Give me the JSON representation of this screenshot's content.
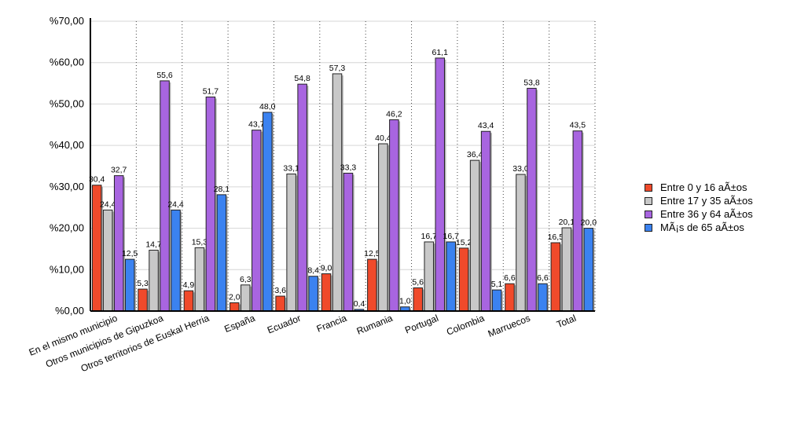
{
  "chart_data": {
    "type": "bar",
    "title": "",
    "xlabel": "",
    "ylabel": "",
    "ylim": [
      0,
      70
    ],
    "y_ticks": [
      "%0,00",
      "%10,00",
      "%20,00",
      "%30,00",
      "%40,00",
      "%50,00",
      "%60,00",
      "%70,00"
    ],
    "grid": true,
    "legend_position": "right",
    "categories": [
      "En el mismo municipio",
      "Otros municipios de Gipuzkoa",
      "Otros territorios de Euskal Herria",
      "España",
      "Ecuador",
      "Francia",
      "Rumania",
      "Portugal",
      "Colombia",
      "Marruecos",
      "Total"
    ],
    "series": [
      {
        "name": "Entre 0 y 16 aÃ±os",
        "color": "#f04a2b",
        "values": [
          30.4,
          5.3,
          4.9,
          2.0,
          3.6,
          9.0,
          12.5,
          5.6,
          15.2,
          6.6,
          16.5
        ],
        "labels": [
          "30,4",
          "5,3",
          "4,9",
          "2,0",
          "3,6",
          "9,0",
          "12,5",
          "5,6",
          "15,2",
          "6,6",
          "16,5"
        ]
      },
      {
        "name": "Entre 17 y 35 aÃ±os",
        "color": "#c8c8c8",
        "values": [
          24.4,
          14.7,
          15.3,
          6.3,
          33.1,
          57.3,
          40.4,
          16.7,
          36.4,
          33.0,
          20.1
        ],
        "labels": [
          "24,4",
          "14,7",
          "15,3",
          "6,3",
          "33,1",
          "57,3",
          "40,4",
          "16,7",
          "36,4",
          "33,0",
          "20,1"
        ]
      },
      {
        "name": "Entre 36 y 64 aÃ±os",
        "color": "#a865e0",
        "values": [
          32.7,
          55.6,
          51.7,
          43.7,
          54.8,
          33.3,
          46.2,
          61.1,
          43.4,
          53.8,
          43.5
        ],
        "labels": [
          "32,7",
          "55,6",
          "51,7",
          "43,7",
          "54,8",
          "33,3",
          "46,2",
          "61,1",
          "43,4",
          "53,8",
          "43,5"
        ]
      },
      {
        "name": "MÃ¡s de 65 aÃ±os",
        "color": "#3b82f0",
        "values": [
          12.5,
          24.4,
          28.1,
          48.0,
          8.4,
          0.4,
          1.0,
          16.7,
          5.1,
          6.6,
          20.0
        ],
        "labels": [
          "12,5",
          "24,4",
          "28,1",
          "48,0",
          "8,4",
          "0,4",
          "1,0",
          "16,7",
          "5,1",
          "6,6",
          "20,0"
        ]
      }
    ]
  }
}
